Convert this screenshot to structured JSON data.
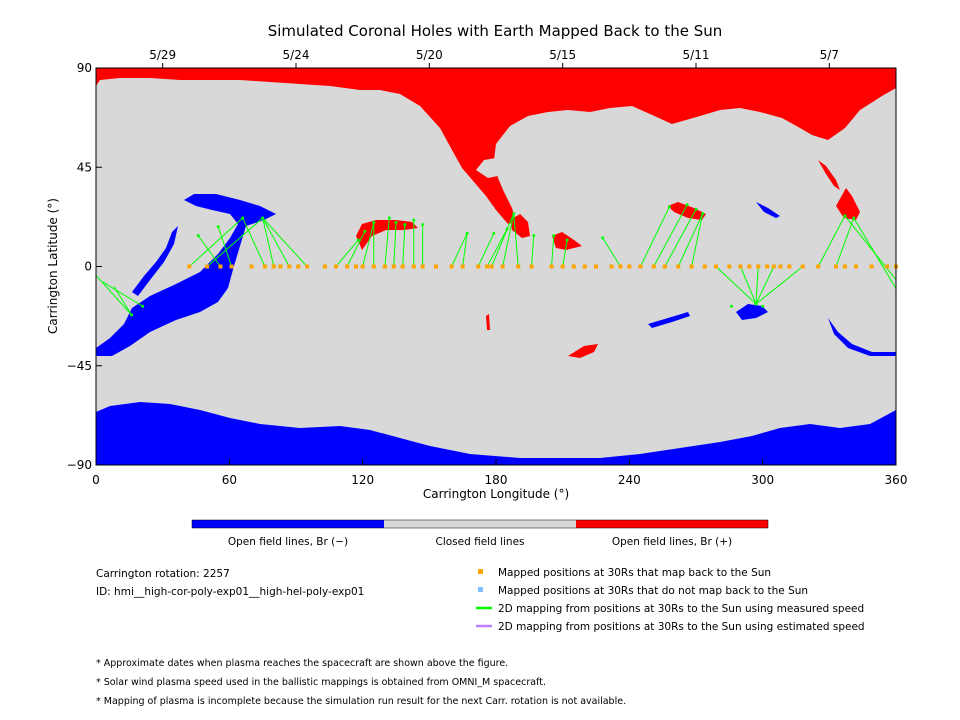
{
  "chart_data": {
    "type": "map",
    "title": "Simulated Coronal Holes with Earth Mapped Back to the Sun",
    "xlabel": "Carrington Longitude (°)",
    "ylabel": "Carrington Latitude (°)",
    "xlim": [
      0,
      360
    ],
    "ylim": [
      -90,
      90
    ],
    "x_ticks": [
      "0",
      "60",
      "120",
      "180",
      "240",
      "300",
      "360"
    ],
    "y_ticks": [
      "90",
      "45",
      "0",
      "−45",
      "−90"
    ],
    "top_dates": [
      {
        "label": "5/29",
        "lon": 30
      },
      {
        "label": "5/24",
        "lon": 90
      },
      {
        "label": "5/20",
        "lon": 150
      },
      {
        "label": "5/15",
        "lon": 210
      },
      {
        "label": "5/11",
        "lon": 270
      },
      {
        "label": "5/7",
        "lon": 330
      }
    ],
    "colorbar": [
      {
        "label": "Open field lines, Br (−)",
        "color": "#0000ff"
      },
      {
        "label": "Closed field lines",
        "color": "#d8d8d8"
      },
      {
        "label": "Open field lines, Br (+)",
        "color": "#ff0000"
      }
    ],
    "colors": {
      "negative": "#0000ff",
      "closed": "#d8d8d8",
      "positive": "#ff0000",
      "mapped_point": "#ffa500",
      "unmapped_point": "#7fbfff",
      "measured_line": "#00ff00",
      "estimated_line": "#bf80ff"
    },
    "mapped_points_lon": [
      42,
      50,
      56,
      61,
      70,
      76,
      80,
      83,
      87,
      91,
      95,
      103,
      108,
      113,
      117,
      120,
      125,
      130,
      134,
      138,
      143,
      147,
      153,
      160,
      165,
      172,
      176,
      178,
      183,
      190,
      196,
      205,
      210,
      215,
      220,
      225,
      232,
      236,
      240,
      245,
      251,
      256,
      262,
      268,
      274,
      279,
      285,
      290,
      294,
      298,
      302,
      305,
      308,
      312,
      318,
      325,
      333,
      337,
      342,
      349,
      356,
      360
    ],
    "foot_points": [
      [
        16,
        -22
      ],
      [
        21,
        -18
      ],
      [
        46,
        14
      ],
      [
        55,
        18
      ],
      [
        66,
        22
      ],
      [
        75,
        22
      ],
      [
        118,
        12
      ],
      [
        121,
        16
      ],
      [
        125,
        20
      ],
      [
        132,
        22
      ],
      [
        135,
        20
      ],
      [
        139,
        19
      ],
      [
        143,
        21
      ],
      [
        147,
        19
      ],
      [
        167,
        15
      ],
      [
        179,
        15
      ],
      [
        185,
        17
      ],
      [
        188,
        24
      ],
      [
        197,
        14
      ],
      [
        206,
        14
      ],
      [
        212,
        12
      ],
      [
        228,
        13
      ],
      [
        258,
        27
      ],
      [
        266,
        28
      ],
      [
        270,
        26
      ],
      [
        273,
        24
      ],
      [
        286,
        -18
      ],
      [
        297,
        -17
      ],
      [
        300,
        -18
      ],
      [
        337,
        23
      ],
      [
        341,
        22
      ]
    ],
    "field_lines": [
      [
        0,
        -4,
        16,
        -22
      ],
      [
        3,
        -7,
        21,
        -18
      ],
      [
        8,
        -9,
        16,
        -22
      ],
      [
        42,
        0,
        66,
        22
      ],
      [
        50,
        0,
        75,
        22
      ],
      [
        56,
        0,
        46,
        14
      ],
      [
        61,
        0,
        55,
        18
      ],
      [
        76,
        0,
        66,
        22
      ],
      [
        80,
        0,
        75,
        22
      ],
      [
        87,
        0,
        75,
        22
      ],
      [
        95,
        0,
        75,
        22
      ],
      [
        108,
        0,
        118,
        12
      ],
      [
        113,
        0,
        121,
        16
      ],
      [
        120,
        0,
        125,
        20
      ],
      [
        125,
        0,
        125,
        20
      ],
      [
        130,
        0,
        132,
        22
      ],
      [
        134,
        0,
        135,
        20
      ],
      [
        138,
        0,
        139,
        19
      ],
      [
        143,
        0,
        143,
        21
      ],
      [
        147,
        0,
        147,
        19
      ],
      [
        160,
        0,
        167,
        15
      ],
      [
        165,
        0,
        167,
        15
      ],
      [
        172,
        0,
        179,
        15
      ],
      [
        176,
        0,
        185,
        17
      ],
      [
        178,
        0,
        188,
        24
      ],
      [
        183,
        0,
        188,
        24
      ],
      [
        190,
        0,
        188,
        24
      ],
      [
        196,
        0,
        197,
        14
      ],
      [
        205,
        0,
        206,
        14
      ],
      [
        210,
        0,
        212,
        12
      ],
      [
        236,
        0,
        228,
        13
      ],
      [
        245,
        0,
        258,
        27
      ],
      [
        251,
        0,
        266,
        28
      ],
      [
        256,
        0,
        270,
        26
      ],
      [
        262,
        0,
        273,
        24
      ],
      [
        268,
        0,
        273,
        24
      ],
      [
        279,
        0,
        297,
        -17
      ],
      [
        290,
        0,
        297,
        -17
      ],
      [
        298,
        0,
        297,
        -17
      ],
      [
        305,
        0,
        297,
        -17
      ],
      [
        318,
        0,
        297,
        -17
      ],
      [
        325,
        0,
        337,
        23
      ],
      [
        333,
        0,
        341,
        22
      ],
      [
        360,
        -6,
        337,
        23
      ],
      [
        360,
        -10,
        341,
        22
      ]
    ],
    "rotation_label": "Carrington rotation: 2257",
    "id_label": "ID: hmi__high-cor-poly-exp01__high-hel-poly-exp01",
    "legend": [
      {
        "kind": "square",
        "color_key": "mapped_point",
        "label": "Mapped positions at 30Rs that map back to the Sun"
      },
      {
        "kind": "square",
        "color_key": "unmapped_point",
        "label": "Mapped positions at 30Rs that do not map back to the Sun"
      },
      {
        "kind": "line",
        "color_key": "measured_line",
        "label": "2D mapping from positions at 30Rs to the Sun using measured speed"
      },
      {
        "kind": "line",
        "color_key": "estimated_line",
        "label": "2D mapping from positions at 30Rs to the Sun using estimated speed"
      }
    ],
    "notes": [
      "* Approximate dates when plasma reaches the spacecraft are shown above the figure.",
      "* Solar wind plasma speed used in the ballistic mappings is obtained from OMNI_M spacecraft.",
      "* Mapping of plasma is incomplete because the simulation run result for the next Carr. rotation is not available."
    ]
  }
}
